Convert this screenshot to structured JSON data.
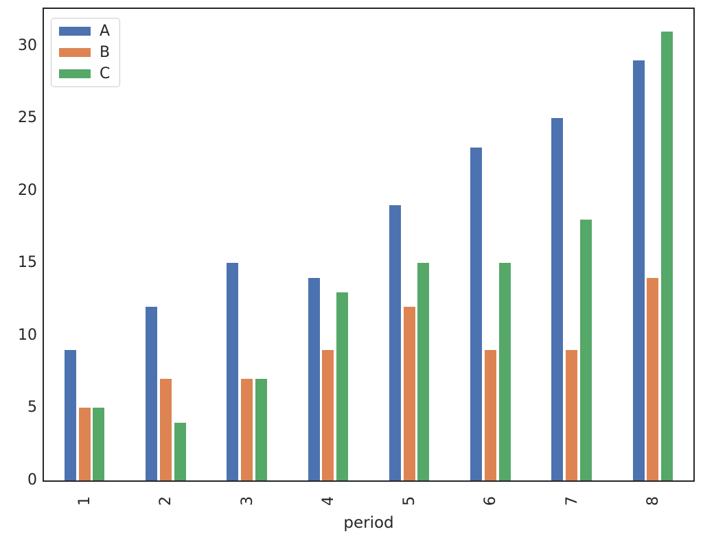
{
  "chart_data": {
    "type": "bar",
    "title": "",
    "xlabel": "period",
    "ylabel": "",
    "categories": [
      "1",
      "2",
      "3",
      "4",
      "5",
      "6",
      "7",
      "8"
    ],
    "series": [
      {
        "name": "A",
        "color": "#4C72B0",
        "values": [
          9,
          12,
          15,
          14,
          19,
          23,
          25,
          29
        ]
      },
      {
        "name": "B",
        "color": "#DD8452",
        "values": [
          5,
          7,
          7,
          9,
          12,
          9,
          9,
          14
        ]
      },
      {
        "name": "C",
        "color": "#55A868",
        "values": [
          5,
          4,
          7,
          13,
          15,
          15,
          18,
          31
        ]
      }
    ],
    "ylim": [
      0,
      32.55
    ],
    "yticks": [
      0,
      5,
      10,
      15,
      20,
      25,
      30
    ],
    "legend_position": "upper left",
    "grid": false,
    "axis_color": "#262626",
    "text_color": "#262626",
    "background_color": "#ffffff"
  }
}
